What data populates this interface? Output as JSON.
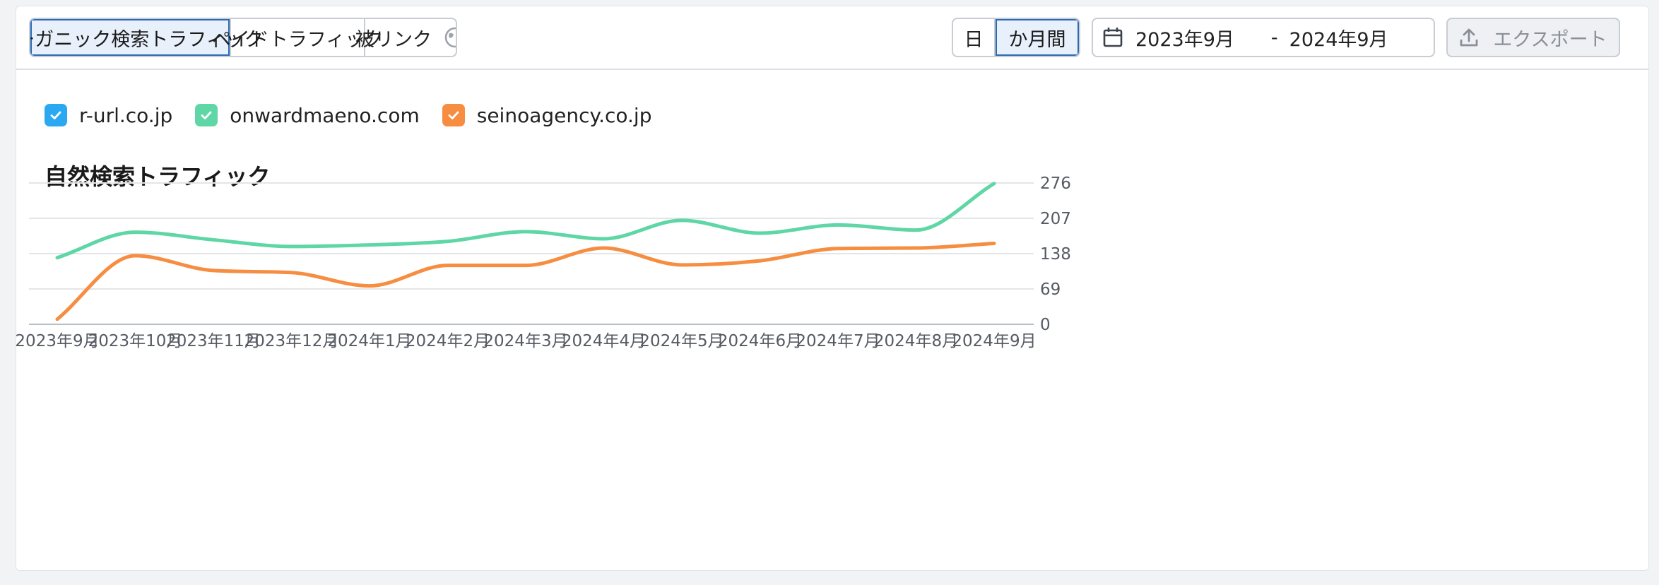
{
  "toolbar": {
    "tabs": [
      {
        "label": "オーガニック検索トラフィック",
        "active": true
      },
      {
        "label": "ペイドトラフィック",
        "active": false
      },
      {
        "label": "被リンク",
        "active": false,
        "icon": "globe-icon"
      }
    ],
    "granularity": [
      {
        "label": "日",
        "active": false
      },
      {
        "label": "か月間",
        "active": true
      }
    ],
    "date_range": {
      "icon": "calendar-icon",
      "start": "2023年9月",
      "separator": "-",
      "end": "2024年9月"
    },
    "export": {
      "label": "エクスポート",
      "icon": "upload-icon",
      "disabled": true
    }
  },
  "legend": [
    {
      "label": "r-url.co.jp",
      "color": "#2aa9f2",
      "checked": true
    },
    {
      "label": "onwardmaeno.com",
      "color": "#5fd6a5",
      "checked": true
    },
    {
      "label": "seinoagency.co.jp",
      "color": "#f68d40",
      "checked": true
    }
  ],
  "chart_data": {
    "type": "line",
    "title": "自然検索トラフィック",
    "categories": [
      "2023年9月",
      "2023年10月",
      "2023年11月",
      "2023年12月",
      "2024年1月",
      "2024年2月",
      "2024年3月",
      "2024年4月",
      "2024年5月",
      "2024年6月",
      "2024年7月",
      "2024年8月",
      "2024年9月"
    ],
    "series": [
      {
        "name": "onwardmaeno.com",
        "color": "#5fd6a5",
        "values": [
          130,
          180,
          165,
          152,
          155,
          162,
          181,
          167,
          203,
          178,
          194,
          184,
          275
        ]
      },
      {
        "name": "seinoagency.co.jp",
        "color": "#f68d40",
        "values": [
          10,
          134,
          105,
          101,
          75,
          115,
          115,
          149,
          116,
          124,
          148,
          149,
          158
        ]
      }
    ],
    "y_ticks": [
      0,
      69,
      138,
      207,
      276
    ],
    "ylim": [
      0,
      276
    ],
    "y_axis_side": "right",
    "grid": true,
    "xlabel": "",
    "ylabel": ""
  }
}
